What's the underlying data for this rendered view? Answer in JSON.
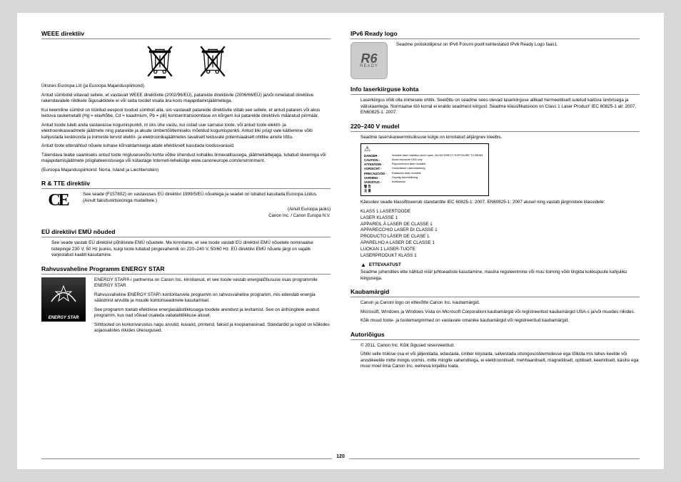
{
  "page_number": "120",
  "left": {
    "weee": {
      "heading": "WEEE direktiiv",
      "p1": "Üksnes Euroopa Liit (ja Euroopa Majanduspiirkond).",
      "p2": "Antud sümbolid viitavad sellele, et vastavalt WEEE direktiivile (2002/96/EÜ), patareide direktiivile (2006/66/EÜ) ja/või nimetatud direktiive rakendavatele riiklikele õigusaktidele ei või seda toodet visata ära koos majapidamisjäätmetega.",
      "p3": "Kui keemiline sümbol on trükitud eespool toodud sümboli alla, siis vastavalt patareide direktiivile viitab see sellele, et antud patareis või akus leiduva raskemetalli (Hg = elavhõbe, Cd = kaadmium, Pb = plii) kontsentratsioonitase on kõrgem kui patareide direktiivis määratud piirmäär.",
      "p4": "Antud toode tuleb anda vastavasse kogumispunkti, nt üks ühe vastu, kui ostad uue sarnase toote, või antud toote elektri- ja elektroonikaseadmete jäätmete ning patareide ja akude ümbertöötlemiseks mõeldud kogumispunkti. Antud liiki prügi vale käitlemine võib kahjustada keskkonda ja inimeste tervist elektri- ja elektroonikajäätmetes tavaliselt leiduvate potentsiaalselt ohtlike ainete tõttu.",
      "p5": "Antud toote ettenähtud nõuete kohase kõrvaldamisega aitate efektiivselt kasutada loodusvarasid.",
      "p6": "Täiendava teabe saamiseks antud toote ringlusesevõtu kohta võtke ühendust kohaliku linnavalitsusega, jäätmekäitlejaga, lubatud skeemiga või majapidamisjäätmete prügilateenistusega või külastage Interneti-lehekülge www.canoneurope.com/environment.",
      "p7": "(Euroopa Majanduspiirkond: Norra, Island ja Liechtenstein)"
    },
    "rtte": {
      "heading": "R & TTE direktiiv",
      "p1": "See seade (F157802) on vastavuses EÜ direktiivi 1999/5/EÜ nõuetega ja seadet on lubatud kasutada Euroopa Liidus. (Ainult faksifunktsiooniga mudelitele.)",
      "c1": "(Ainult Euroopa jaoks)",
      "c2": "Canon Inc. / Canon Europa N.V."
    },
    "emu": {
      "heading": "EÜ direktiivi EMÜ nõuded",
      "p1": "See seade vastab EÜ direktiivi põhilistele EMÜ nõuetele. Me kinnitame, et see toode vastab EÜ direktiivi EMÜ nõuetele nominaalse toitepinge 230 V, 50 Hz juures, kuigi toote lubatud pingevahemik on 220–240 V, 50/60 Hz. EÜ direktiivi EMÜ nõuete järgi on vajalik varjestatud kaabli kasutamine."
    },
    "energy": {
      "heading": "Rahvusvaheline Programm ENERGY STAR",
      "p1": "ENERGY STAR®-i partnerina on Canon Inc. kinnitanud, et see toode vastab energiatõhususe osas programmile ENERGY STAR.",
      "p2": "Rahvusvaheline ENERGY STAR'i kontoritarvete programm on rahvusvaheline programm, mis edendab energia säästmist arvutite ja muude kontoriseadmete kasutamisel.",
      "p3": "See programm toetab efektiivse energiasäästlikkusega toodete arendust ja levitamist. See on ärihüngitele avatud programm, kus nad võivad osaleda vabatahtlikkuse alusel.",
      "p4": "Sihttooted on kontorivarustus nagu arvutid, kuvarid, printerid, faksid ja koopiamasinad. Standardid ja logod on kõikides asjaosalistes riikides ühesugused.",
      "star_label": "ENERGY STAR"
    }
  },
  "right": {
    "ipv6": {
      "heading": "IPv6 Ready logo",
      "p1": "Seadme protokollipinul on IPv6 Forumi poolt kehtestatud IPv6 Ready Logo faas1.",
      "logo_top": "R6",
      "logo_bot": "READY"
    },
    "laser": {
      "heading": "Info laserkiirguse kohta",
      "p1": "Laserkiirgus võib olla inimesele ohtlik. Seetõttu on seadme sees olevad laserkiirguse allikad hermeetiliselt suletud kaitsva ümbrisega ja väliskaantega. Normaalse töö korral ei eraldu seadmest kiirgust. Seadme klassifikatsioon on Class 1 Laser Product' IEC 60825-1 all: 2007, EN60825-1: 2007."
    },
    "v220": {
      "heading": "220–240 V mudel",
      "p1": "Seadme laserskaneerimisüksuse külge on kinnitatud alljärgnev kleebis.",
      "danger_rows": [
        {
          "label": "DANGER -",
          "desc": "Invisible laser radiation when open. AVOID DIRECT EXPOSURE TO BEAM."
        },
        {
          "label": "CAUTION -",
          "desc": "Avoid exposure USA only"
        },
        {
          "label": "ATTENTION -",
          "desc": "Rayonnement laser invisible"
        },
        {
          "label": "VORSICHT -",
          "desc": "Unsichtbare Laserstrahlung"
        },
        {
          "label": "PRECAUCIÓN -",
          "desc": "Radiación láser invisible"
        },
        {
          "label": "VARNING -",
          "desc": "Osynlig laserstrålning"
        },
        {
          "label": "VAROITUS -",
          "desc": "Avattaessa"
        },
        {
          "label": "警  告",
          "desc": ""
        },
        {
          "label": "注  意",
          "desc": ""
        }
      ],
      "p2": "Käesolev seade klassifitseerub standardite IEC 60825-1: 2007, EN60825-1: 2007 alusel ning vastab järgmistele klassidele:",
      "classes": "KLASS 1 LASERTOODE\nLASER KLASSE 1\nAPPAREIL À LASER DE CLASSE 1\nAPPARECCHIO LASER DI CLASSE 1\nPRODUCTO LÁSER DE CLASE 1\nAPARELHO A LASER DE CLASSE 1\nLUOKAN 1 LASER-TUOTE\nLASERPRODUKT KLASS 1",
      "warn": "ETTEVAATUST",
      "p3": "Seadme juhendites ette nähtud viisil juhtseadiste kasutamine, masina reguleerimine või muu toiming võib tingida kokkupuute kahjuliku kiirgusega."
    },
    "kauba": {
      "heading": "Kaubamärgid",
      "p1": "Canon ja Canoni logo on ettevõtte Canon Inc. kaubamärgid.",
      "p2": "Microsoft, Windows ja Windows Vista on Microsoft Corporationi kaubamärgid või registreeritud kaubamärgid USA-s ja/või muudes riikides.",
      "p3": "Kõik muud toote- ja tootemarginimed on vastavate omanike kaubamärgid või registreeritud kaubamärgid."
    },
    "autor": {
      "heading": "Autoriõigus",
      "p1": "© 2011, Canon Inc. Kõik õigused reserveeritud.",
      "p2": "Ühtki selle trükise osa ei või jäljendada, edastada, ümber kirjutada, salvestada otsingusüsteemidesse ega tõlkida mis tahes keelde või arvutikeelde mitte mingis vormis, mitte mingite vahenditega, ei elektrooniliselt, mehhaaniliselt, magnetiliselt, optiliselt, keemiliselt, käsitsi ega muul moel ilma Canon Inc. eelneva kirjaliku loata."
    }
  }
}
